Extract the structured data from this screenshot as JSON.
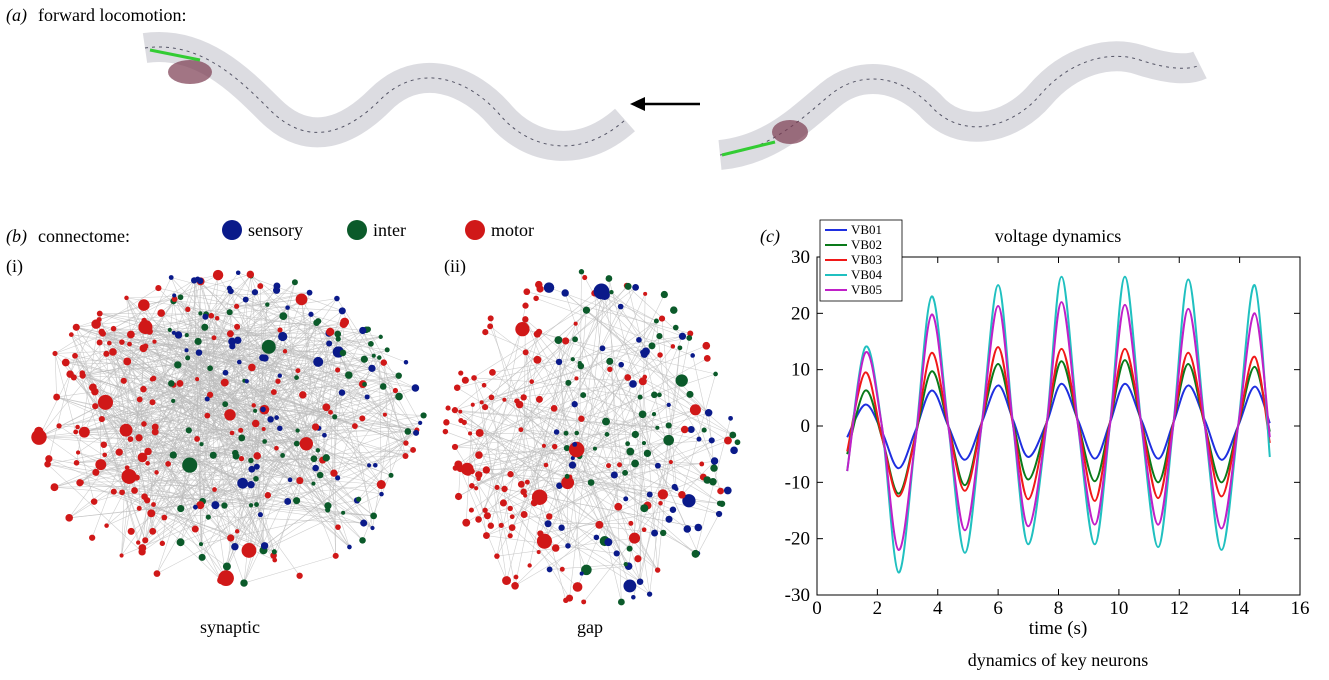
{
  "panel_a": {
    "label": "(a)",
    "title": "forward locomotion:"
  },
  "panel_b": {
    "label": "(b)",
    "title": "connectome:",
    "legend": [
      "sensory",
      "inter",
      "motor"
    ],
    "legend_colors": [
      "#0a1a8a",
      "#0b5a2a",
      "#d01818"
    ],
    "sub_i": "(i)",
    "sub_ii": "(ii)",
    "caption_i": "synaptic",
    "caption_ii": "gap"
  },
  "panel_c": {
    "label": "(c)",
    "caption": "dynamics of key neurons"
  },
  "chart_data": {
    "type": "line",
    "title": "voltage dynamics",
    "x_label": "time (s)",
    "x": [
      1.0,
      1.6,
      2.15,
      2.7,
      3.25,
      3.8,
      4.35,
      4.9,
      5.45,
      6.0,
      6.5,
      7.0,
      7.6,
      8.1,
      8.65,
      9.2,
      9.7,
      10.2,
      10.75,
      11.3,
      11.8,
      12.3,
      12.85,
      13.4,
      13.95,
      14.5,
      15.0
    ],
    "series": [
      {
        "name": "VB01",
        "color": "#1f2fe0",
        "values": [
          -2,
          3.8,
          -1,
          -7.5,
          -1,
          6.3,
          0,
          -6,
          0.5,
          7.2,
          1,
          -5.5,
          0.5,
          7.5,
          1,
          -5.8,
          0.5,
          7.5,
          1,
          -5.8,
          0.5,
          7.2,
          1,
          -6,
          0,
          7,
          0.5
        ]
      },
      {
        "name": "VB02",
        "color": "#0a7a1a",
        "values": [
          -5,
          6.3,
          -2,
          -12,
          -2,
          9.7,
          0,
          -10.5,
          0.5,
          11,
          0.5,
          -9.5,
          0.5,
          11.5,
          0.5,
          -9.8,
          0.5,
          11.7,
          0.5,
          -10,
          0.5,
          11,
          0,
          -10,
          0,
          10.5,
          -1
        ]
      },
      {
        "name": "VB03",
        "color": "#f01818",
        "values": [
          -4.5,
          9.5,
          -2,
          -12.5,
          -2,
          13,
          0,
          -11.5,
          0.5,
          14,
          0,
          -13,
          0.5,
          13.7,
          0.5,
          -13.3,
          0.5,
          13.7,
          0.5,
          -12.8,
          0.5,
          13,
          0,
          -12.5,
          0,
          12.3,
          -3
        ]
      },
      {
        "name": "VB04",
        "color": "#20c0c0",
        "values": [
          -8,
          14,
          0,
          -26,
          -3,
          23,
          0,
          -22.5,
          0,
          25,
          0,
          -21,
          0,
          26.5,
          0,
          -21,
          0,
          26.5,
          0,
          -21.5,
          0,
          26,
          0,
          -22,
          0,
          25,
          -5.5
        ]
      },
      {
        "name": "VB05",
        "color": "#c020c8",
        "values": [
          -8,
          13,
          0,
          -22,
          -3,
          19.8,
          0,
          -18.5,
          0,
          21.3,
          0,
          -17.8,
          0,
          22,
          0,
          -17.5,
          0,
          21.5,
          0,
          -17.5,
          0,
          20.8,
          0,
          -18.2,
          0,
          20,
          -2
        ]
      }
    ],
    "xlim": [
      0,
      16
    ],
    "xticks": [
      0,
      2,
      4,
      6,
      8,
      10,
      12,
      14,
      16
    ],
    "ylim": [
      -30,
      30
    ],
    "yticks": [
      -30,
      -20,
      -10,
      0,
      10,
      20,
      30
    ],
    "legend": "upper left"
  }
}
